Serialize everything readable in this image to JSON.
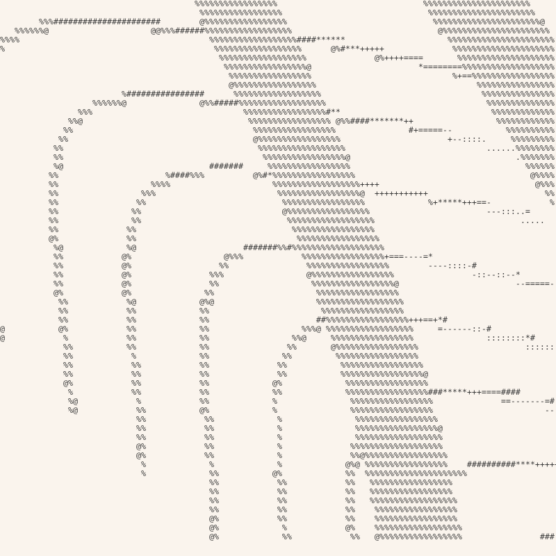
{
  "art": {
    "lines": [
      "                                        %%%%%%%%%%%%%%%%%                              %%%%%%%%%%%%%%%%%%%%%%",
      "                                         %%%%%%%%%%%%%%%%%                              %%%%%%%%%%%%%%%%%%%%%%",
      "        %%%######################        @%%%%%%%%%%%%%%%%%                              %%%%%%%%%%%%%%%%%%%%%%@",
      "   %%%%%%@                     @@%%%######%%%%%%%%%%%%%%%%%%                              @%%%%%%%%%%%%%%%%%%%%%%",
      "%%%%                                       %%%%%%%%%%%%%%%%%%####******                     %%%%%%%%%%%%%%%%%%%%%%",
      "%                                           %%%%%%%%%%%%%%%%%%      @%#***+++++              %%%%%%%%%%%%%%%%%%%%%",
      "                                             %%%%%%%%%%%%%%%%%%              @%++++====       %%%%%%%%%%%%%%%%%%%%",
      "                                              %%%%%%%%%%%%%%%%%@                      *========%%%%%%%%%%%%%%%%%%%",
      "                                               %%%%%%%%%%%%%%%%%                             %+==%%%%%%%%%%%%%%%%%",
      "                                               @%%%%%%%%%%%%%%%%%                                 %%%%%%%%%%%%%%%%",
      "                         %################      %%%%%%%%%%%%%%%%%%                                 %%%%%%%%%%%%%%%",
      "                   %%%%%%@               @%%#####%%%%%%%%%%%%%%%%%%                                 %%%%%%%%%%%%%%",
      "                %%%                               %%%%%%%%%%%%%%%%%#**                               %%%%%%%%%%%%%",
      "              %%@                                  %%%%%%%%%%%%%%%%% @%%####*******++                 %%%%%%%%%%%%",
      "             %%                                     %%%%%%%%%%%%%%%%%               #+=====--           %%%%%%%%%%",
      "            %%                                      @%%%%%%%%%%%%%%%%%                      +--::::.     %%%%%%%%%",
      "           %%                                        %%%%%%%%%%%%%%%%%%                             ......%%%%%%%%",
      "           %%                                         %%%%%%%%%%%%%%%%%@                                  .%%%%%%%",
      "           %@                              #######     %%%%%%%%%%%%%%%%%                                    %%%%%%",
      "          %%                      %####%%%          @%#*%%%%%%%%%%%%%%%%%                                    @%%%%",
      "          %%                   %%%%                     %%%%%%%%%%%%%%%%%%++++                                @%%%",
      "          %%                 %%%                         %%%%%%%%%%%%%%%%%@  +++++++++++                        %%",
      "          %%                %%                            %%%%%%%%%%%%%%%%%             %+*****+++==-            %",
      "          %%               %%                             @%%%%%%%%%%%%%%%%%                        ---:::..=",
      "          %%               %%                              %%%%%%%%%%%%%%%%%%                              .....",
      "          %%              %%                                %%%%%%%%%%%%%%%%%",
      "          @%              %%                                 %%%%%%%%%%%%%%%%%",
      "           %@             %@                      #######%%#%%%%%%%%%%%%%%%%%%%",
      "           %%            @%                   @%%%            %%%%%%%%%%%%%%%%%+===----=*",
      "           %%            @%                  %%                %%%%%%%%%%%%%%%%%        ----::::-#",
      "           %%            @%                %%%                 @%%%%%%%%%%%%%%%%%                -::--::--*",
      "           %%            @%                %%                   %%%%%%%%%%%%%%%%%@                        --=====-",
      "           @%            @%               %%                     %%%%%%%%%%%%%%%%%",
      "            %%            %@             @%@                     %%%%%%%%%%%%%%%%%%",
      "            %%            %%             %%                       %%%%%%%%%%%%%%%%%",
      "            %%            %%             %%                      ##%%%%%%%%%%%%%%%%%+++==+*#",
      "@           @%            %%             %%                   %%%@ %%%%%%%%%%%%%%%%%%     =------::-#",
      "@            %            %%             %%                 %%@     %%%%%%%%%%%%%%%%%               ::::::::*#",
      "             %%           %%             %%                %%       @%%%%%%%%%%%%%%%%%                      ::::::",
      "             %%            %             %%               %%         %%%%%%%%%%%%%%%%%",
      "             %%            %%            %%              %%           %%%%%%%%%%%%%%%%%",
      "             %%            %%            %%              %%           %%%%%%%%%%%%%%%%%@",
      "             @%            %%            %%             @%             %%%%%%%%%%%%%%%%%",
      "              %            %%            %%             %%             %%%%%%%%%%%%%%%%%###*****+++====####",
      "              %@            %            %%             %               %%%%%%%%%%%%%%%%%              ==-------=#",
      "              %@            %%           @%             %               %%%%%%%%%%%%%%%%%                       --",
      "                            %%            %%             %               %%%%%%%%%%%%%%%%%",
      "                            %%            %%             %               %%%%%%%%%%%%%%%%%@",
      "                            %%            %%             %               %%%%%%%%%%%%%%%%%%",
      "                            @%            %%             %              %%%%%%%%%%%%%%%%%%%",
      "                            @%            %%             %              %%@%%%%%%%%%%%%%%%%%",
      "                             %             %             %             @%@ %%%%%%%%%%%%%%%%%    ##########****+++++=",
      "                             %             %%           @%             %%  %%%%%%%%%%%%%%%%%%%%%",
      "                                           %%            %%            %%   %%%%%%%%%%%%%%%%%",
      "                                           %%            %%            %%   %%%%%%%%%%%%%%%%%",
      "                                           %%            %%            %%   %%%%%%%%%%%%%%%%%%",
      "                                           %%            %%            %%    %%%%%%%%%%%%%%%%%",
      "                                           @%            %%            %%    %%%%%%%%%%%%%%%%%",
      "                                           @%             %            @%    %%%%%%%%%%%%%%%%%%",
      "                                           @%             %%            %%   @%%%%%%%%%%%%%%%%%                ###"
    ]
  },
  "colors": {
    "background": "#faf4ed",
    "ink": "#3a3a3a"
  }
}
